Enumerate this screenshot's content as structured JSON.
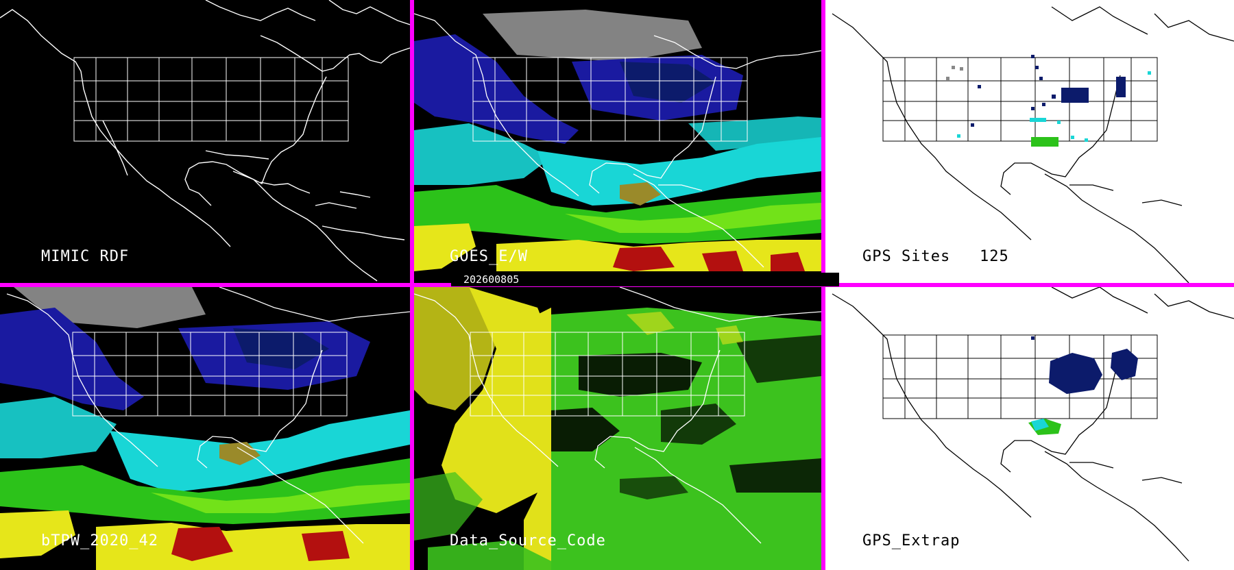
{
  "panels": {
    "mimic_rdf": {
      "label": "MIMIC RDF",
      "background": "#000000",
      "text_color": "#ffffff"
    },
    "goes_ew": {
      "label": "GOES_E/W",
      "background": "#000000",
      "text_color": "#ffffff"
    },
    "gps_sites": {
      "label": "GPS Sites",
      "count": "125",
      "background": "#ffffff",
      "text_color": "#000000"
    },
    "btpw": {
      "label": "bTPW_2020_42",
      "background": "#000000",
      "text_color": "#ffffff"
    },
    "data_source_code": {
      "label": "Data_Source_Code",
      "background": "#000000",
      "text_color": "#ffffff"
    },
    "gps_extrap": {
      "label": "GPS_Extrap",
      "background": "#ffffff",
      "text_color": "#000000"
    }
  },
  "date_stamp": "202600805",
  "colors": {
    "separator": "#ff00ff",
    "map_lines_dark": "#ffffff",
    "map_lines_light": "#000000",
    "tpw_gray": "#9a9a9a",
    "tpw_blue": "#1a1aa0",
    "tpw_navy": "#0c1b6b",
    "tpw_cyan": "#19d6d6",
    "tpw_green": "#2cc21a",
    "tpw_lime": "#7ae51a",
    "tpw_yellow": "#e6e61a",
    "tpw_olive": "#9a8a2a",
    "tpw_red": "#b3100f",
    "source_yellow": "#e1e11a",
    "source_green": "#3cc21e"
  }
}
